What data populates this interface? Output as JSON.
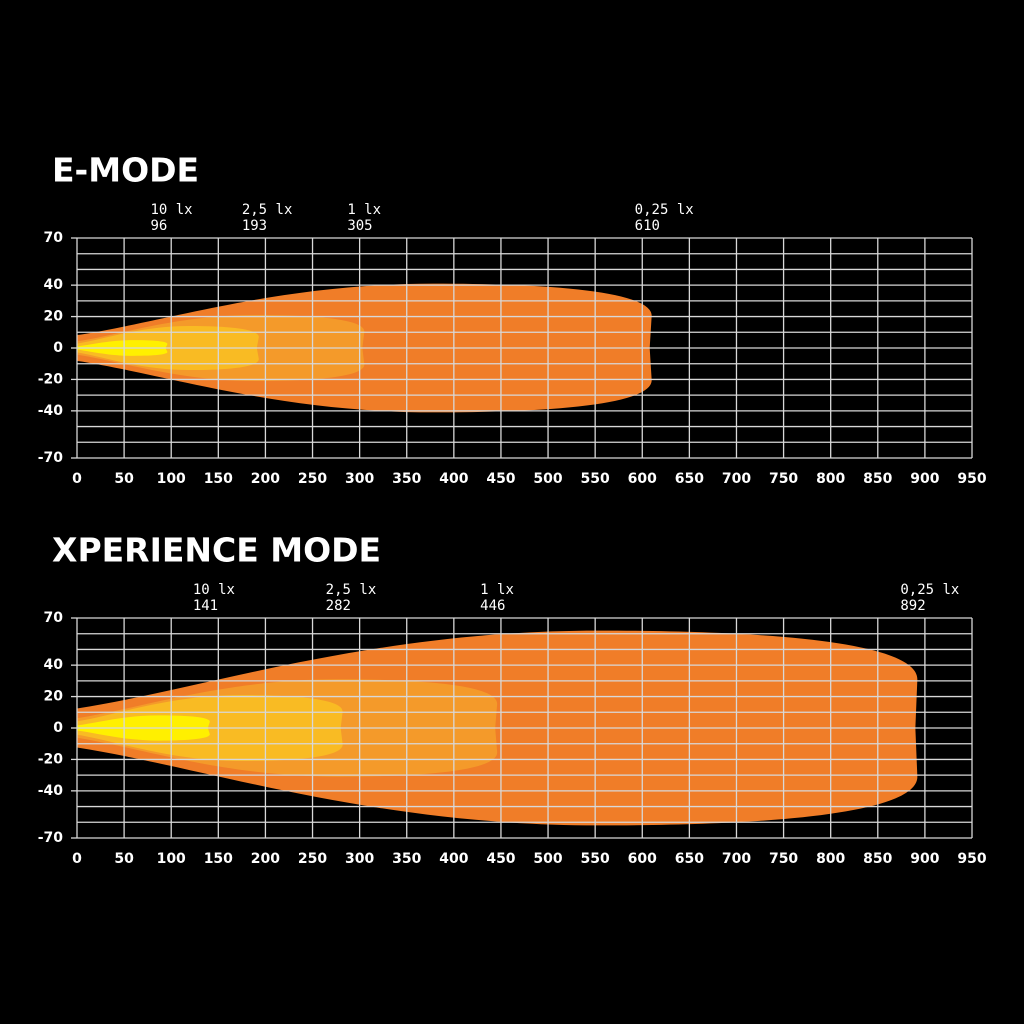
{
  "chart_data": [
    {
      "type": "beam",
      "title": "E-MODE",
      "xlim": [
        0,
        950
      ],
      "xticks": [
        0,
        50,
        100,
        150,
        200,
        250,
        300,
        350,
        400,
        450,
        500,
        550,
        600,
        650,
        700,
        750,
        800,
        850,
        900,
        950
      ],
      "ylim": [
        -70,
        70
      ],
      "yticks": [
        70,
        40,
        20,
        0,
        -20,
        -40,
        -70
      ],
      "ygrid": [
        70,
        60,
        50,
        40,
        30,
        20,
        10,
        0,
        -10,
        -20,
        -30,
        -40,
        -50,
        -60,
        -70
      ],
      "grid": true,
      "isolux": [
        {
          "label": "0,25 lx",
          "distance": 610,
          "half_width": 41,
          "color": "#f07d28"
        },
        {
          "label": "1 lx",
          "distance": 305,
          "half_width": 21,
          "color": "#f49a2a"
        },
        {
          "label": "2,5 lx",
          "distance": 193,
          "half_width": 14,
          "color": "#f9bb23"
        },
        {
          "label": "10 lx",
          "distance": 96,
          "half_width": 5,
          "color": "#fff000"
        }
      ]
    },
    {
      "type": "beam",
      "title": "XPERIENCE MODE",
      "xlim": [
        0,
        950
      ],
      "xticks": [
        0,
        50,
        100,
        150,
        200,
        250,
        300,
        350,
        400,
        450,
        500,
        550,
        600,
        650,
        700,
        750,
        800,
        850,
        900,
        950
      ],
      "ylim": [
        -70,
        70
      ],
      "yticks": [
        70,
        40,
        20,
        0,
        -20,
        -40,
        -70
      ],
      "ygrid": [
        70,
        60,
        50,
        40,
        30,
        20,
        10,
        0,
        -10,
        -20,
        -30,
        -40,
        -50,
        -60,
        -70
      ],
      "grid": true,
      "isolux": [
        {
          "label": "0,25 lx",
          "distance": 892,
          "half_width": 62,
          "color": "#f07d28"
        },
        {
          "label": "1 lx",
          "distance": 446,
          "half_width": 31,
          "color": "#f49a2a"
        },
        {
          "label": "2,5 lx",
          "distance": 282,
          "half_width": 21,
          "color": "#f9bb23"
        },
        {
          "label": "10 lx",
          "distance": 141,
          "half_width": 8,
          "color": "#fff000"
        }
      ]
    }
  ]
}
